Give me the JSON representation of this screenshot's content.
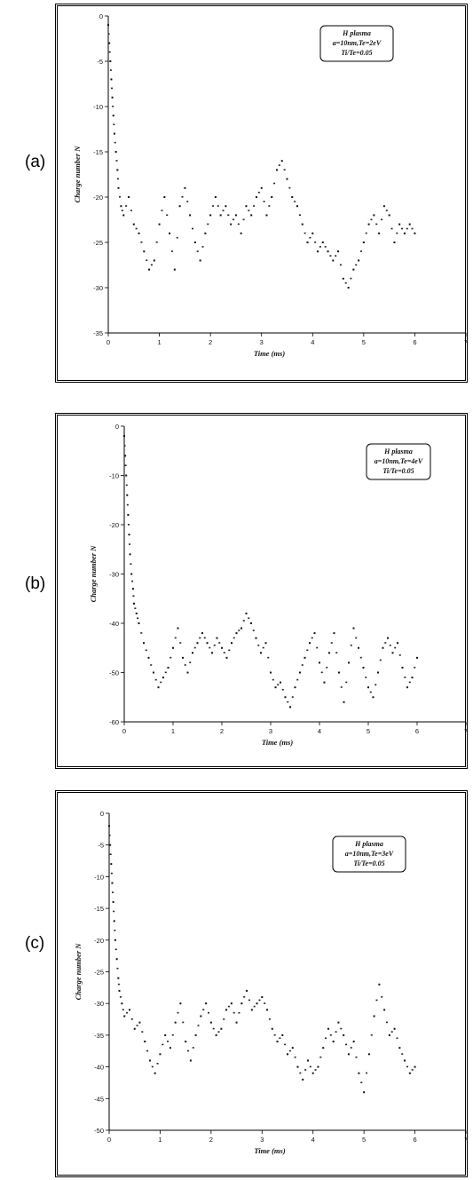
{
  "panels": [
    {
      "label": "(a)",
      "legend": [
        "H plasma",
        "a=10nm,Te=2eV",
        "Ti/Te=0.05"
      ]
    },
    {
      "label": "(b)",
      "legend": [
        "H plasma",
        "a=10nm,Te=4eV",
        "Ti/Te=0.05"
      ]
    },
    {
      "label": "(c)",
      "legend": [
        "H plasma",
        "a=10nm,Te=3eV",
        "Ti/Te=0.05"
      ]
    }
  ],
  "chart_data": [
    {
      "type": "scatter",
      "xlabel": "Time (ms)",
      "ylabel": "Charge number N",
      "xlim": [
        0,
        7
      ],
      "ylim": [
        -35,
        0
      ],
      "xticks": [
        0,
        1,
        2,
        3,
        4,
        5,
        6,
        7
      ],
      "yticks": [
        0,
        -5,
        -10,
        -15,
        -20,
        -25,
        -30,
        -35
      ],
      "series": [
        {
          "x": [
            0,
            0.02,
            0.04,
            0.06,
            0.08,
            0.1,
            0.12,
            0.15,
            0.18,
            0.2,
            0.25,
            0.3,
            0.4,
            0.5,
            0.6,
            0.7,
            0.8,
            0.9,
            1.0,
            1.1,
            1.2,
            1.3,
            1.4,
            1.5,
            1.6,
            1.7,
            1.8,
            1.9,
            2.0,
            2.1,
            2.2,
            2.3,
            2.4,
            2.5,
            2.6,
            2.7,
            2.8,
            2.9,
            3.0,
            3.1,
            3.2,
            3.3,
            3.4,
            3.5,
            3.6,
            3.7,
            3.8,
            3.9,
            4.0,
            4.1,
            4.2,
            4.3,
            4.4,
            4.5,
            4.6,
            4.7,
            4.8,
            4.9,
            5.0,
            5.1,
            5.2,
            5.3,
            5.4,
            5.5,
            5.6,
            5.7,
            5.8,
            5.9,
            6.0
          ],
          "y": [
            -1,
            -3,
            -5,
            -7,
            -9,
            -11,
            -13,
            -15,
            -17,
            -19,
            -21,
            -22,
            -20,
            -23,
            -24,
            -26,
            -28,
            -27,
            -23,
            -20,
            -24,
            -28,
            -21,
            -19,
            -22,
            -25,
            -27,
            -24,
            -22,
            -20,
            -22,
            -21,
            -23,
            -22,
            -24,
            -21,
            -22,
            -20,
            -19,
            -22,
            -20,
            -17,
            -16,
            -18,
            -20,
            -21,
            -23,
            -25,
            -24,
            -26,
            -25,
            -26,
            -27,
            -26,
            -29,
            -30,
            -28,
            -27,
            -25,
            -23,
            -22,
            -24,
            -21,
            -22,
            -25,
            -23,
            -24,
            -23,
            -24
          ]
        }
      ]
    },
    {
      "type": "scatter",
      "xlabel": "Time (ms)",
      "ylabel": "Charge number N",
      "xlim": [
        0,
        7
      ],
      "ylim": [
        -60,
        0
      ],
      "xticks": [
        0,
        1,
        2,
        3,
        4,
        5,
        6,
        7
      ],
      "yticks": [
        0,
        -10,
        -20,
        -30,
        -40,
        -50,
        -60
      ],
      "series": [
        {
          "x": [
            0,
            0.02,
            0.04,
            0.06,
            0.08,
            0.1,
            0.12,
            0.15,
            0.18,
            0.2,
            0.25,
            0.3,
            0.4,
            0.5,
            0.6,
            0.7,
            0.8,
            0.9,
            1.0,
            1.1,
            1.2,
            1.3,
            1.4,
            1.5,
            1.6,
            1.7,
            1.8,
            1.9,
            2.0,
            2.1,
            2.2,
            2.3,
            2.4,
            2.5,
            2.6,
            2.7,
            2.8,
            2.9,
            3.0,
            3.1,
            3.2,
            3.3,
            3.4,
            3.5,
            3.6,
            3.7,
            3.8,
            3.9,
            4.0,
            4.1,
            4.2,
            4.3,
            4.4,
            4.5,
            4.6,
            4.7,
            4.8,
            4.9,
            5.0,
            5.1,
            5.2,
            5.3,
            5.4,
            5.5,
            5.6,
            5.7,
            5.8,
            5.9,
            6.0
          ],
          "y": [
            -2,
            -6,
            -10,
            -14,
            -18,
            -22,
            -26,
            -30,
            -33,
            -36,
            -38,
            -40,
            -44,
            -47,
            -50,
            -53,
            -51,
            -49,
            -45,
            -41,
            -47,
            -50,
            -46,
            -44,
            -42,
            -44,
            -46,
            -43,
            -45,
            -47,
            -44,
            -42,
            -41,
            -38,
            -40,
            -43,
            -46,
            -44,
            -50,
            -53,
            -52,
            -55,
            -57,
            -53,
            -50,
            -47,
            -44,
            -42,
            -48,
            -52,
            -46,
            -42,
            -50,
            -56,
            -48,
            -41,
            -45,
            -49,
            -53,
            -55,
            -50,
            -45,
            -43,
            -46,
            -44,
            -49,
            -53,
            -51,
            -47
          ]
        }
      ]
    },
    {
      "type": "scatter",
      "xlabel": "Time (ms)",
      "ylabel": "Charge number N",
      "xlim": [
        0,
        7
      ],
      "ylim": [
        -50,
        0
      ],
      "xticks": [
        0,
        1,
        2,
        3,
        4,
        5,
        6,
        7
      ],
      "yticks": [
        0,
        -5,
        -10,
        -15,
        -20,
        -25,
        -30,
        -35,
        -40,
        -45,
        -50
      ],
      "series": [
        {
          "x": [
            0,
            0.02,
            0.04,
            0.06,
            0.08,
            0.1,
            0.12,
            0.15,
            0.18,
            0.2,
            0.25,
            0.3,
            0.4,
            0.5,
            0.6,
            0.7,
            0.8,
            0.9,
            1.0,
            1.1,
            1.2,
            1.3,
            1.4,
            1.5,
            1.6,
            1.7,
            1.8,
            1.9,
            2.0,
            2.1,
            2.2,
            2.3,
            2.4,
            2.5,
            2.6,
            2.7,
            2.8,
            2.9,
            3.0,
            3.1,
            3.2,
            3.3,
            3.4,
            3.5,
            3.6,
            3.7,
            3.8,
            3.9,
            4.0,
            4.1,
            4.2,
            4.3,
            4.4,
            4.5,
            4.6,
            4.7,
            4.8,
            4.9,
            5.0,
            5.1,
            5.2,
            5.3,
            5.4,
            5.5,
            5.6,
            5.7,
            5.8,
            5.9,
            6.0
          ],
          "y": [
            -2,
            -5,
            -8,
            -11,
            -14,
            -17,
            -20,
            -23,
            -26,
            -28,
            -30,
            -32,
            -31,
            -34,
            -33,
            -36,
            -39,
            -41,
            -38,
            -35,
            -37,
            -33,
            -30,
            -36,
            -39,
            -35,
            -32,
            -30,
            -33,
            -35,
            -34,
            -31,
            -30,
            -33,
            -30,
            -28,
            -31,
            -30,
            -29,
            -31,
            -34,
            -36,
            -35,
            -38,
            -37,
            -40,
            -42,
            -39,
            -41,
            -40,
            -37,
            -34,
            -36,
            -33,
            -35,
            -38,
            -36,
            -41,
            -44,
            -38,
            -32,
            -27,
            -31,
            -35,
            -34,
            -37,
            -39,
            -41,
            -40
          ]
        }
      ]
    }
  ]
}
